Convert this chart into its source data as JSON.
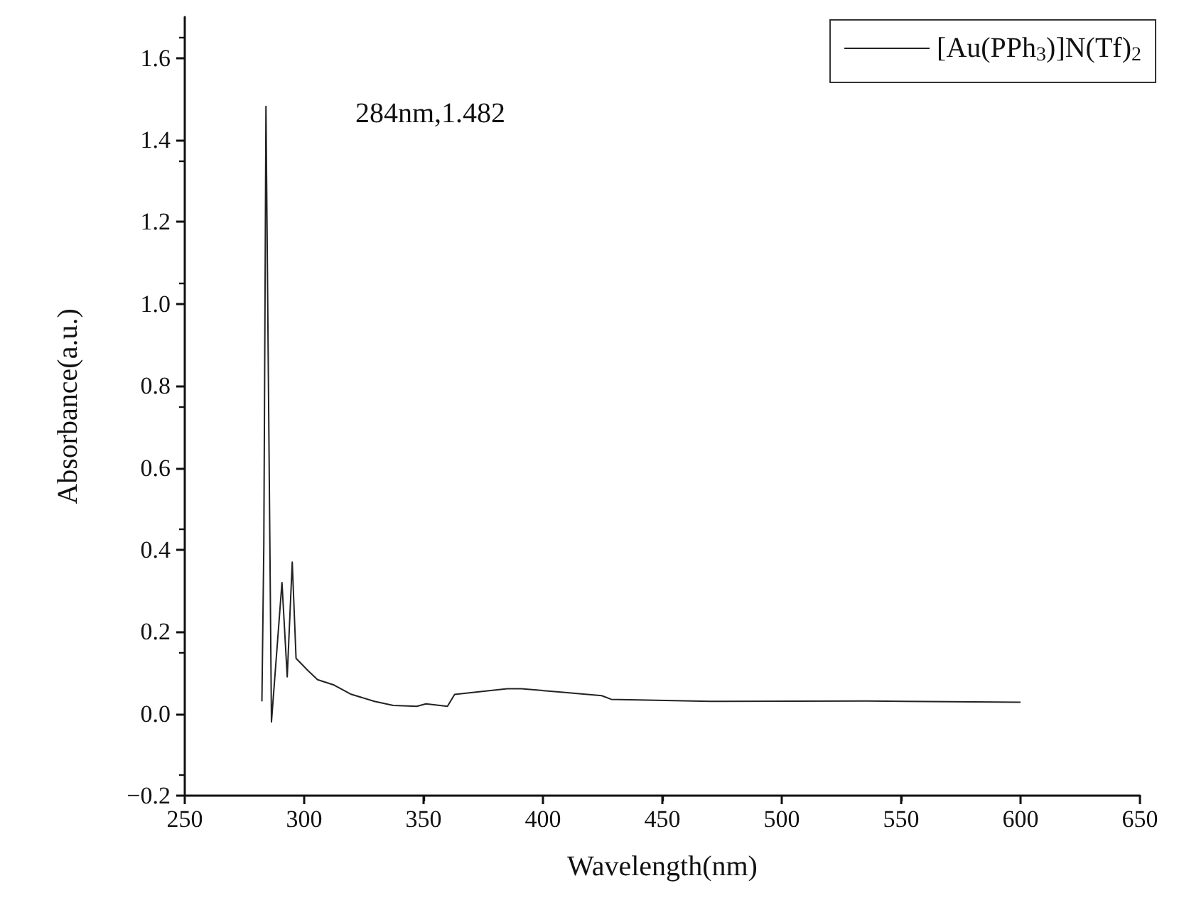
{
  "chart_data": {
    "type": "line",
    "xlabel": "Wavelength(nm)",
    "ylabel": "Absorbance(a.u.)",
    "xlim": [
      250,
      650
    ],
    "xticks": [
      250,
      300,
      350,
      400,
      450,
      500,
      550,
      600,
      650
    ],
    "ylim": [
      -0.2,
      1.7
    ],
    "yticks": [
      {
        "value": -0.2,
        "label": "−0.2"
      },
      {
        "value": 0,
        "label": "0.0"
      },
      0.2,
      0.4,
      0.6,
      0.8,
      {
        "value": 1,
        "label": "1.0"
      },
      1.2,
      1.4,
      1.6
    ],
    "series": [
      {
        "name": "[Au(PPh$_{3}$)]N(Tf)$_{2}$",
        "color": "#222222",
        "x": [
          282.3,
          283.1,
          284,
          286.3,
          290.7,
          292.9,
          295,
          296.6,
          301.6,
          305.6,
          312.5,
          319.4,
          329.4,
          337.3,
          347.2,
          351,
          360,
          363,
          385,
          391,
          406.7,
          424.6,
          428.6,
          470,
          535.7,
          600
        ],
        "values": [
          0.03,
          0.41,
          1.482,
          -0.02,
          0.32,
          0.09,
          0.37,
          0.135,
          0.105,
          0.083,
          0.07,
          0.048,
          0.03,
          0.02,
          0.018,
          0.024,
          0.018,
          0.047,
          0.061,
          0.061,
          0.053,
          0.044,
          0.035,
          0.03,
          0.031,
          0.028
        ]
      }
    ],
    "annotations": [
      "284nm,1.482"
    ],
    "legend": "top right",
    "marker": "none",
    "line_style": "solid",
    "grid": false
  }
}
